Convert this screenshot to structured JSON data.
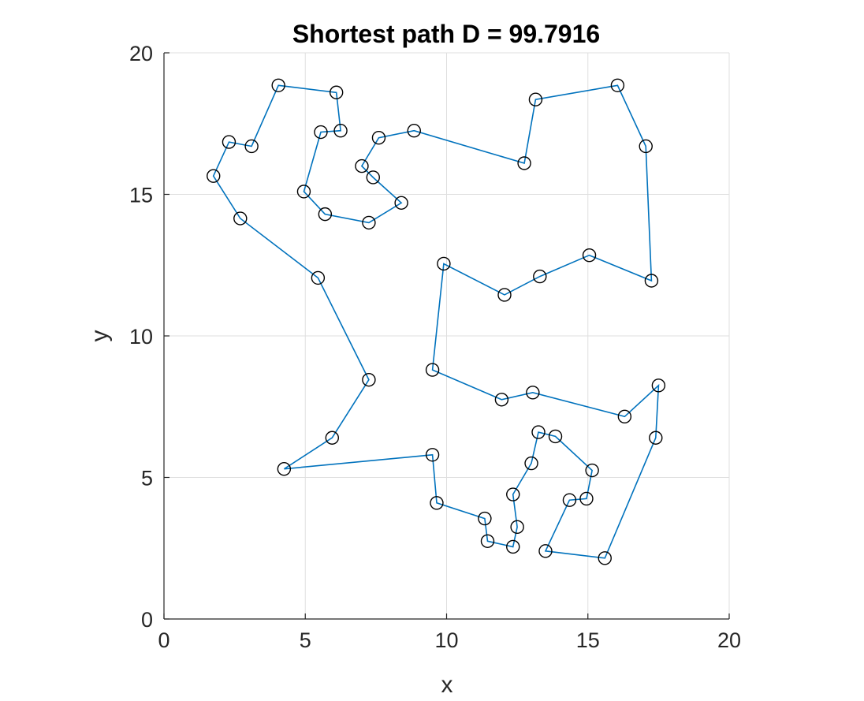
{
  "chart_data": {
    "type": "line",
    "title": "Shortest path D = 99.7916",
    "xlabel": "x",
    "ylabel": "y",
    "xlim": [
      0,
      20
    ],
    "ylim": [
      0,
      20
    ],
    "xticks": [
      0,
      5,
      10,
      15,
      20
    ],
    "yticks": [
      0,
      5,
      10,
      15,
      20
    ],
    "xtick_labels": [
      "0",
      "5",
      "10",
      "15",
      "20"
    ],
    "ytick_labels": [
      "0",
      "5",
      "10",
      "15",
      "20"
    ],
    "grid": true,
    "line_color": "#0072bd",
    "marker": "circle",
    "marker_color": "#000000",
    "series": [
      {
        "x": [
          4.25,
          5.95,
          7.25,
          5.45,
          2.7,
          1.75,
          2.3,
          3.1,
          4.05,
          6.1,
          6.25,
          5.55,
          4.95,
          5.7,
          7.25,
          8.4,
          7.4,
          7.0,
          7.6,
          8.85,
          12.75,
          13.15,
          16.05,
          17.05,
          17.25,
          15.05,
          13.3,
          12.05,
          9.9,
          9.5,
          11.95,
          13.05,
          16.3,
          17.5,
          17.4,
          15.6,
          13.5,
          14.35,
          14.95,
          15.15,
          13.85,
          13.25,
          13.0,
          12.35,
          12.5,
          12.35,
          11.45,
          11.35,
          9.65,
          9.5,
          4.25
        ],
        "y": [
          5.3,
          6.4,
          8.45,
          12.05,
          14.15,
          15.65,
          16.85,
          16.7,
          18.85,
          18.6,
          17.25,
          17.2,
          15.1,
          14.3,
          14.0,
          14.7,
          15.6,
          16.0,
          17.0,
          17.25,
          16.1,
          18.35,
          18.85,
          16.7,
          11.95,
          12.85,
          12.1,
          11.45,
          12.55,
          8.8,
          7.75,
          8.0,
          7.15,
          8.25,
          6.4,
          2.15,
          2.4,
          4.2,
          4.25,
          5.25,
          6.45,
          6.6,
          5.5,
          4.4,
          3.25,
          2.55,
          2.75,
          3.55,
          4.1,
          5.8,
          5.3
        ]
      }
    ]
  }
}
